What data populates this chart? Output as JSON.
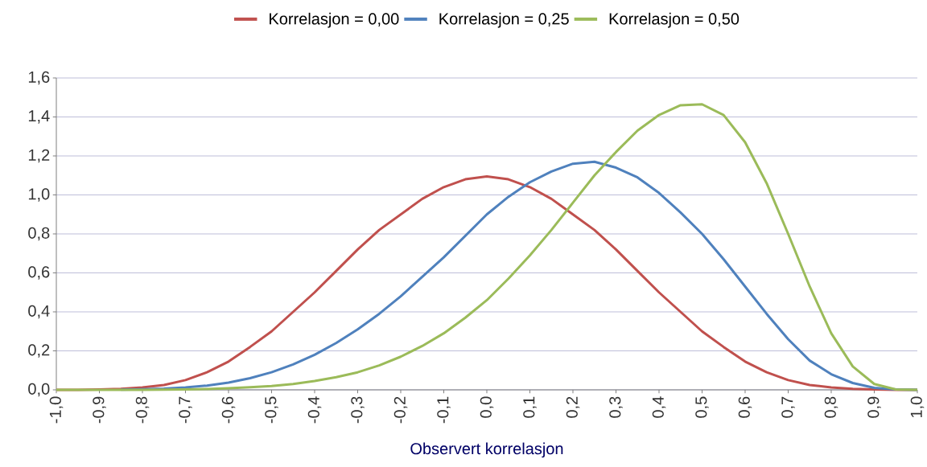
{
  "chart_data": {
    "type": "line",
    "xlabel": "Observert korrelasjon",
    "x": [
      -1.0,
      -0.95,
      -0.9,
      -0.85,
      -0.8,
      -0.75,
      -0.7,
      -0.65,
      -0.6,
      -0.55,
      -0.5,
      -0.45,
      -0.4,
      -0.35,
      -0.3,
      -0.25,
      -0.2,
      -0.15,
      -0.1,
      -0.05,
      0.0,
      0.05,
      0.1,
      0.15,
      0.2,
      0.25,
      0.3,
      0.35,
      0.4,
      0.45,
      0.5,
      0.55,
      0.6,
      0.65,
      0.7,
      0.75,
      0.8,
      0.85,
      0.9,
      0.95,
      1.0
    ],
    "series": [
      {
        "name": "Korrelasjon = 0,00",
        "color": "#c0504d",
        "values": [
          0,
          0,
          0.002,
          0.005,
          0.012,
          0.025,
          0.05,
          0.09,
          0.145,
          0.22,
          0.3,
          0.4,
          0.5,
          0.61,
          0.72,
          0.82,
          0.9,
          0.98,
          1.04,
          1.08,
          1.095,
          1.08,
          1.04,
          0.98,
          0.9,
          0.82,
          0.72,
          0.61,
          0.5,
          0.4,
          0.3,
          0.22,
          0.145,
          0.09,
          0.05,
          0.025,
          0.012,
          0.005,
          0.002,
          0,
          0
        ]
      },
      {
        "name": "Korrelasjon = 0,25",
        "color": "#4f81bd",
        "values": [
          null,
          null,
          null,
          0.001,
          0.003,
          0.006,
          0.012,
          0.022,
          0.037,
          0.06,
          0.09,
          0.13,
          0.18,
          0.24,
          0.31,
          0.39,
          0.48,
          0.58,
          0.68,
          0.79,
          0.9,
          0.99,
          1.065,
          1.12,
          1.16,
          1.17,
          1.14,
          1.09,
          1.01,
          0.91,
          0.8,
          0.67,
          0.53,
          0.39,
          0.26,
          0.15,
          0.08,
          0.035,
          0.01,
          0.002,
          0
        ]
      },
      {
        "name": "Korrelasjon = 0,50",
        "color": "#9bbb59",
        "values": [
          0,
          0,
          0,
          0,
          0,
          0.001,
          0.002,
          0.004,
          0.008,
          0.013,
          0.02,
          0.03,
          0.045,
          0.065,
          0.09,
          0.125,
          0.17,
          0.225,
          0.29,
          0.37,
          0.46,
          0.57,
          0.69,
          0.82,
          0.96,
          1.1,
          1.22,
          1.33,
          1.41,
          1.46,
          1.465,
          1.41,
          1.27,
          1.06,
          0.8,
          0.53,
          0.29,
          0.12,
          0.03,
          0.002,
          0
        ]
      }
    ],
    "xlim": [
      -1.0,
      1.0
    ],
    "xticks": [
      {
        "value": -1.0,
        "label": "-1,0"
      },
      {
        "value": -0.9,
        "label": "-0,9"
      },
      {
        "value": -0.8,
        "label": "-0,8"
      },
      {
        "value": -0.7,
        "label": "-0,7"
      },
      {
        "value": -0.6,
        "label": "-0,6"
      },
      {
        "value": -0.5,
        "label": "-0,5"
      },
      {
        "value": -0.4,
        "label": "-0,4"
      },
      {
        "value": -0.3,
        "label": "-0,3"
      },
      {
        "value": -0.2,
        "label": "-0,2"
      },
      {
        "value": -0.1,
        "label": "-0,1"
      },
      {
        "value": 0.0,
        "label": "0,0"
      },
      {
        "value": 0.1,
        "label": "0,1"
      },
      {
        "value": 0.2,
        "label": "0,2"
      },
      {
        "value": 0.3,
        "label": "0,3"
      },
      {
        "value": 0.4,
        "label": "0,4"
      },
      {
        "value": 0.5,
        "label": "0,5"
      },
      {
        "value": 0.6,
        "label": "0,6"
      },
      {
        "value": 0.7,
        "label": "0,7"
      },
      {
        "value": 0.8,
        "label": "0,8"
      },
      {
        "value": 0.9,
        "label": "0,9"
      },
      {
        "value": 1.0,
        "label": "1,0"
      }
    ],
    "ylim": [
      0,
      1.6
    ],
    "yticks": [
      {
        "value": 0.0,
        "label": "0,0"
      },
      {
        "value": 0.2,
        "label": "0,2"
      },
      {
        "value": 0.4,
        "label": "0,4"
      },
      {
        "value": 0.6,
        "label": "0,6"
      },
      {
        "value": 0.8,
        "label": "0,8"
      },
      {
        "value": 1.0,
        "label": "1,0"
      },
      {
        "value": 1.2,
        "label": "1,2"
      },
      {
        "value": 1.4,
        "label": "1,4"
      },
      {
        "value": 1.6,
        "label": "1,6"
      }
    ],
    "grid": "y",
    "legend": "top",
    "marker": "none",
    "line_style": "solid"
  }
}
